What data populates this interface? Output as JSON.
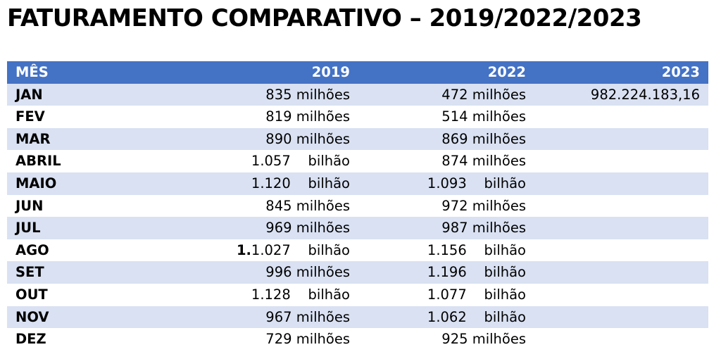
{
  "title": "FATURAMENTO COMPARATIVO – 2019/2022/2023",
  "headers": [
    "MÊS",
    "2019",
    "2022",
    "2023"
  ],
  "rows": [
    {
      "mes": "JAN",
      "y2019": "835 milhões",
      "y2022": "472 milhões",
      "y2023": "982.224.183,16"
    },
    {
      "mes": "FEV",
      "y2019": "819 milhões",
      "y2022": "514 milhões",
      "y2023": ""
    },
    {
      "mes": "MAR",
      "y2019": "890 milhões",
      "y2022": "869 milhões",
      "y2023": ""
    },
    {
      "mes": "ABRIL",
      "y2019": "1.057    bilhão",
      "y2022": "874 milhões",
      "y2023": ""
    },
    {
      "mes": "MAIO",
      "y2019": "1.120    bilhão",
      "y2022": "1.093    bilhão",
      "y2023": ""
    },
    {
      "mes": "JUN",
      "y2019": "845 milhões",
      "y2022": "972 milhões",
      "y2023": ""
    },
    {
      "mes": "JUL",
      "y2019": "969 milhões",
      "y2022": "987 milhões",
      "y2023": ""
    },
    {
      "mes": "AGO",
      "y2019_prefix": "1.",
      "y2019": "1.027    bilhão",
      "y2022": "1.156    bilhão",
      "y2023": ""
    },
    {
      "mes": "SET",
      "y2019": "996 milhões",
      "y2022": "1.196    bilhão",
      "y2023": ""
    },
    {
      "mes": "OUT",
      "y2019": "1.128    bilhão",
      "y2022": "1.077    bilhão",
      "y2023": ""
    },
    {
      "mes": "NOV",
      "y2019": "967 milhões",
      "y2022": "1.062    bilhão",
      "y2023": ""
    },
    {
      "mes": "DEZ",
      "y2019": "729 milhões",
      "y2022": "925 milhões",
      "y2023": ""
    }
  ],
  "colors": {
    "header_bg": "#4472c4",
    "band_bg": "#d9e1f2",
    "header_text": "#ffffff"
  }
}
